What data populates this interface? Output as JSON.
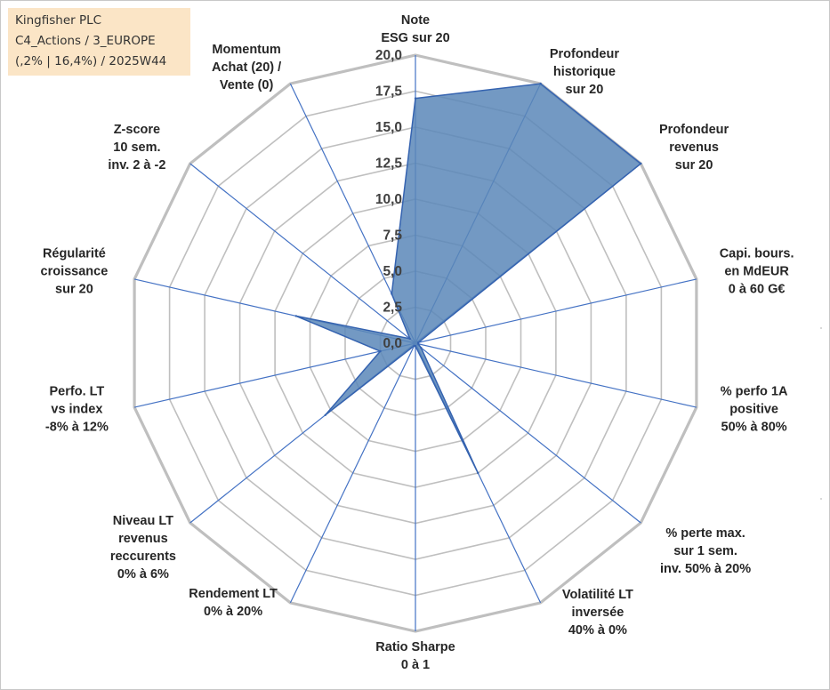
{
  "info_box": {
    "line1": "Kingfisher PLC",
    "line2": "C4_Actions / 3_EUROPE",
    "line3": "(,2% | 16,4%) / 2025W44"
  },
  "chart_data": {
    "type": "radar",
    "title": "",
    "r_range": [
      0,
      20
    ],
    "r_ticks": [
      "0,0",
      "2,5",
      "5,0",
      "7,5",
      "10,0",
      "12,5",
      "15,0",
      "17,5",
      "20,0"
    ],
    "grid": true,
    "grid_color": "#bfbfbf",
    "spoke_color": "#4472c4",
    "fill_color": "#5b87b8",
    "fill_opacity": 0.85,
    "outline_color": "#3563b0",
    "axes": [
      {
        "lines": [
          "Note",
          "ESG sur 20"
        ]
      },
      {
        "lines": [
          "Profondeur",
          "historique",
          "sur 20"
        ]
      },
      {
        "lines": [
          "Profondeur",
          "revenus",
          "sur 20"
        ]
      },
      {
        "lines": [
          "Capi. bours.",
          "en MdEUR",
          "0 à 60 G€"
        ]
      },
      {
        "lines": [
          "% perfo 1A",
          "positive",
          "50% à 80%"
        ]
      },
      {
        "lines": [
          "% perte max.",
          "sur 1 sem.",
          "inv. 50% à 20%"
        ]
      },
      {
        "lines": [
          "Volatilité LT",
          "inversée",
          "40% à 0%"
        ]
      },
      {
        "lines": [
          "Ratio Sharpe",
          "0 à 1"
        ]
      },
      {
        "lines": [
          "Rendement LT",
          "0% à 20%"
        ]
      },
      {
        "lines": [
          "Niveau LT",
          "revenus",
          "reccurents",
          "0% à 6%"
        ]
      },
      {
        "lines": [
          "Perfo. LT",
          "vs index",
          "-8% à 12%"
        ]
      },
      {
        "lines": [
          "Régularité",
          "croissance",
          "sur 20"
        ]
      },
      {
        "lines": [
          "Z-score",
          "10 sem.",
          "inv. 2 à -2"
        ]
      },
      {
        "lines": [
          "Momentum",
          "Achat (20) /",
          "Vente (0)"
        ]
      }
    ],
    "values": [
      17.0,
      20.0,
      20.0,
      0.2,
      0.2,
      0.5,
      10.0,
      0.2,
      0.2,
      8.0,
      2.5,
      8.5,
      0.5,
      3.8
    ]
  }
}
